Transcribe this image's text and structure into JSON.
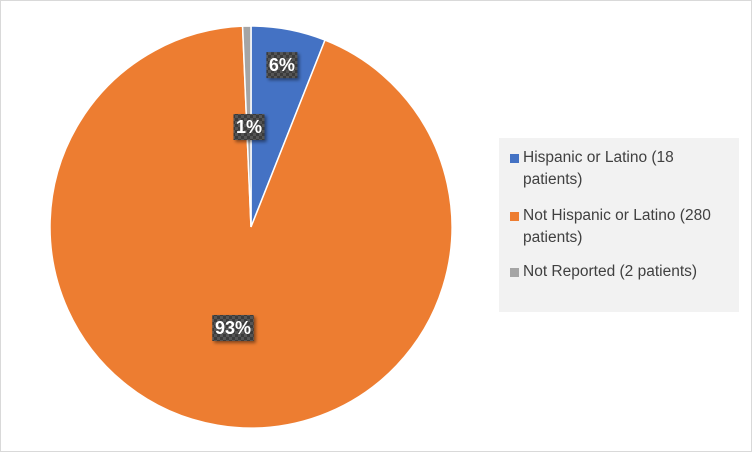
{
  "chart_data": {
    "type": "pie",
    "categories": [
      "Hispanic or Latino (18 patients)",
      "Not Hispanic or Latino (280 patients)",
      "Not Reported (2 patients)"
    ],
    "values": [
      18,
      280,
      2
    ],
    "labels": [
      "6%",
      "93%",
      "1%"
    ],
    "colors": [
      "#4472c4",
      "#ed7d31",
      "#a5a5a5"
    ],
    "legend_position": "right",
    "title": ""
  }
}
